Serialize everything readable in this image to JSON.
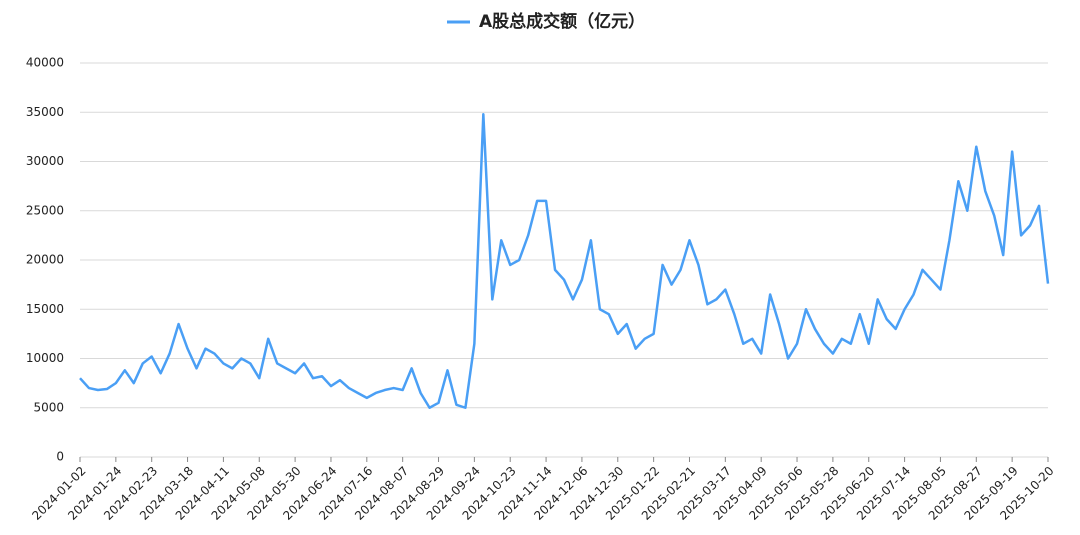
{
  "chart_data": {
    "type": "line",
    "categories": [
      "2024-01-02",
      null,
      null,
      null,
      "2024-01-24",
      null,
      null,
      null,
      "2024-02-23",
      null,
      null,
      null,
      "2024-03-18",
      null,
      null,
      null,
      "2024-04-11",
      null,
      null,
      null,
      "2024-05-08",
      null,
      null,
      null,
      "2024-05-30",
      null,
      null,
      null,
      "2024-06-24",
      null,
      null,
      null,
      "2024-07-16",
      null,
      null,
      null,
      "2024-08-07",
      null,
      null,
      null,
      "2024-08-29",
      null,
      null,
      null,
      "2024-09-24",
      null,
      null,
      null,
      "2024-10-23",
      null,
      null,
      null,
      "2024-11-14",
      null,
      null,
      null,
      "2024-12-06",
      null,
      null,
      null,
      "2024-12-30",
      null,
      null,
      null,
      "2025-01-22",
      null,
      null,
      null,
      "2025-02-21",
      null,
      null,
      null,
      "2025-03-17",
      null,
      null,
      null,
      "2025-04-09",
      null,
      null,
      null,
      "2025-05-06",
      null,
      null,
      null,
      "2025-05-28",
      null,
      null,
      null,
      "2025-06-20",
      null,
      null,
      null,
      "2025-07-14",
      null,
      null,
      null,
      "2025-08-05",
      null,
      null,
      null,
      "2025-08-27",
      null,
      null,
      null,
      "2025-09-19",
      null,
      null,
      null,
      "2025-10-20"
    ],
    "series": [
      {
        "name": "A股总成交额（亿元）",
        "color": "#4a9ff5",
        "values": [
          8000,
          7000,
          6800,
          6900,
          7500,
          8800,
          7500,
          9500,
          10200,
          8500,
          10500,
          13500,
          11000,
          9000,
          11000,
          10500,
          9500,
          9000,
          10000,
          9500,
          8000,
          12000,
          9500,
          9000,
          8500,
          9500,
          8000,
          8200,
          7200,
          7800,
          7000,
          6500,
          6000,
          6500,
          6800,
          7000,
          6800,
          9000,
          6500,
          5000,
          5500,
          8800,
          5300,
          5000,
          11500,
          34800,
          16000,
          22000,
          19500,
          20000,
          22500,
          26000,
          26000,
          19000,
          18000,
          16000,
          18000,
          22000,
          15000,
          14500,
          12500,
          13500,
          11000,
          12000,
          12500,
          19500,
          17500,
          19000,
          22000,
          19500,
          15500,
          16000,
          17000,
          14500,
          11500,
          12000,
          10500,
          16500,
          13500,
          10000,
          11500,
          15000,
          13000,
          11500,
          10500,
          12000,
          11500,
          14500,
          11500,
          16000,
          14000,
          13000,
          15000,
          16500,
          19000,
          18000,
          17000,
          22000,
          28000,
          25000,
          31500,
          27000,
          24500,
          20500,
          31000,
          22500,
          23500,
          25500,
          17600
        ]
      }
    ],
    "ylim": [
      0,
      40000
    ],
    "yticks": [
      0,
      5000,
      10000,
      15000,
      20000,
      25000,
      30000,
      35000,
      40000
    ],
    "grid": true,
    "legend": "top"
  }
}
